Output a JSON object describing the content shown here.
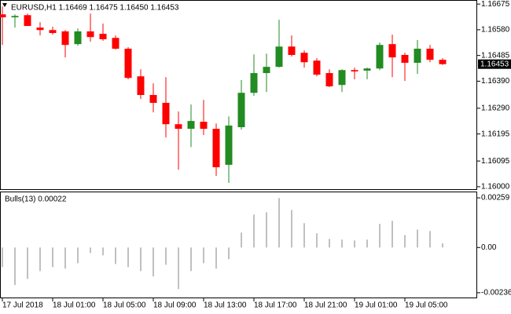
{
  "chart_data": [
    {
      "type": "candlestick",
      "title": "EURUSD,H1 1.16469 1.16475 1.16450 1.16453",
      "categories": [
        "17 Jul 2018",
        null,
        null,
        null,
        "18 Jul 01:00",
        null,
        null,
        null,
        "18 Jul 05:00",
        null,
        null,
        null,
        "18 Jul 09:00",
        null,
        null,
        null,
        "18 Jul 13:00",
        null,
        null,
        null,
        "18 Jul 17:00",
        null,
        null,
        null,
        "18 Jul 21:00",
        null,
        null,
        null,
        "19 Jul 01:00",
        null,
        null,
        null,
        "19 Jul 05:00",
        null,
        null,
        null
      ],
      "open": [
        1.16637,
        1.16626,
        1.16634,
        1.16588,
        1.16579,
        1.16574,
        1.16527,
        1.16574,
        1.16565,
        1.1655,
        1.1651,
        1.16408,
        1.16339,
        1.1631,
        1.16231,
        1.16214,
        1.1624,
        1.16214,
        1.16081,
        1.1622,
        1.16347,
        1.1642,
        1.16443,
        1.16518,
        1.16495,
        1.16466,
        1.1642,
        1.16376,
        1.16431,
        1.16429,
        1.16437,
        1.16527,
        1.16487,
        1.16458,
        1.1651,
        1.16469
      ],
      "high": [
        1.16666,
        1.16637,
        1.1664,
        1.16608,
        1.16591,
        1.16579,
        1.16585,
        1.1664,
        1.16603,
        1.16559,
        1.16516,
        1.16434,
        1.16382,
        1.16405,
        1.16278,
        1.16304,
        1.16321,
        1.16234,
        1.1626,
        1.16394,
        1.16489,
        1.16492,
        1.16617,
        1.16559,
        1.16504,
        1.16475,
        1.16434,
        1.16434,
        1.1644,
        1.1644,
        1.16533,
        1.16562,
        1.16495,
        1.16542,
        1.16524,
        1.16475
      ],
      "low": [
        1.16524,
        1.16588,
        1.16594,
        1.16559,
        1.16562,
        1.16478,
        1.16521,
        1.16536,
        1.16539,
        1.16507,
        1.16397,
        1.16324,
        1.16275,
        1.16182,
        1.16063,
        1.16147,
        1.16191,
        1.1604,
        1.16014,
        1.16211,
        1.16336,
        1.1635,
        1.1644,
        1.16481,
        1.1644,
        1.16408,
        1.16368,
        1.1635,
        1.16397,
        1.16397,
        1.16431,
        1.16405,
        1.16391,
        1.16417,
        1.1646,
        1.1645
      ],
      "close": [
        1.16626,
        1.16631,
        1.16594,
        1.16579,
        1.16568,
        1.16524,
        1.16574,
        1.16553,
        1.16545,
        1.1651,
        1.16402,
        1.16339,
        1.1631,
        1.16231,
        1.16214,
        1.16243,
        1.16214,
        1.16072,
        1.16226,
        1.16347,
        1.1642,
        1.16443,
        1.16518,
        1.16487,
        1.1646,
        1.16414,
        1.16371,
        1.16431,
        1.16426,
        1.16437,
        1.16524,
        1.16478,
        1.16458,
        1.1651,
        1.16469,
        1.16453
      ],
      "up_color": "#228b22",
      "down_color": "#ff0000",
      "last_price": 1.16453,
      "ylim": [
        1.15988,
        1.1669
      ],
      "yticks": [
        1.16675,
        {
          "value": 1.1658,
          "label": "1.16580"
        },
        1.16485,
        {
          "value": 1.1639,
          "label": "1.16390"
        },
        {
          "value": 1.1629,
          "label": "1.16290"
        },
        1.16195,
        1.16095,
        {
          "value": 1.16,
          "label": "1.16000"
        }
      ]
    },
    {
      "type": "histogram",
      "title": "Bulls(13) 0.00022",
      "values": [
        -0.00102,
        -0.00196,
        -0.00164,
        -0.00123,
        -0.00102,
        -0.0011,
        -0.00082,
        -0.00029,
        -0.00041,
        -0.00086,
        -0.00102,
        -0.00123,
        -0.00151,
        -0.0009,
        -0.00217,
        -0.00123,
        -0.00082,
        -0.0011,
        -0.00061,
        0.00078,
        0.00172,
        0.00184,
        0.00258,
        0.00196,
        0.00127,
        0.00074,
        0.00045,
        0.00041,
        0.00037,
        0.00041,
        0.00123,
        0.00139,
        0.00065,
        0.00094,
        0.00086,
        0.00022
      ],
      "color": "#c0c0c0",
      "ylim": [
        -0.00265,
        0.00292
      ],
      "yticks": [
        0.00259,
        {
          "value": 0,
          "label": "0.00"
        },
        -0.00236
      ]
    }
  ]
}
